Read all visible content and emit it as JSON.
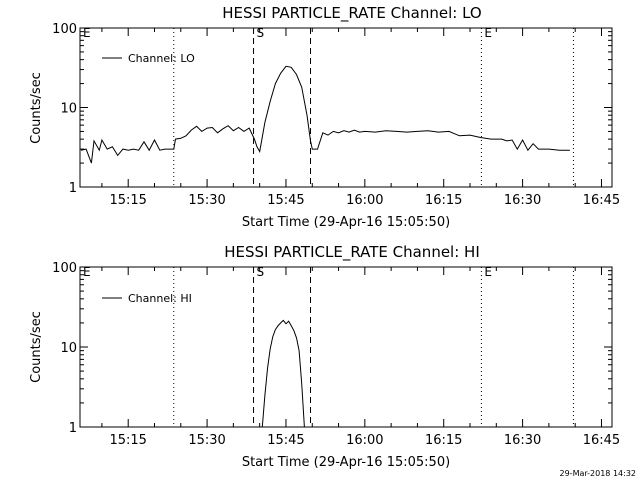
{
  "footer": {
    "timestamp": "29-Mar-2018 14:32"
  },
  "chart_data": [
    {
      "type": "line",
      "title": "HESSI PARTICLE_RATE Channel: LO",
      "xlabel": "Start Time (29-Apr-16 15:05:50)",
      "ylabel": "Counts/sec",
      "yscale": "log",
      "ylim": [
        1,
        100
      ],
      "xlim": [
        "15:05:50",
        "16:47:00"
      ],
      "y_tick_labels": [
        "1",
        "10",
        "100"
      ],
      "x_tick_labels": [
        "15:15",
        "15:30",
        "15:45",
        "16:00",
        "16:15",
        "16:30",
        "16:45"
      ],
      "x_ticks_min": [
        15.25,
        15.5,
        15.75,
        16.0,
        16.25,
        16.5,
        16.75
      ],
      "legend": {
        "position": "top-left",
        "label": "Channel: LO"
      },
      "markers": [
        {
          "label": "E",
          "time": "15:05:50",
          "style": "none"
        },
        {
          "label": "",
          "time": "15:23:40",
          "style": "dotted"
        },
        {
          "label": "S",
          "time": "15:38:50",
          "style": "dashed"
        },
        {
          "label": "",
          "time": "15:49:40",
          "style": "dashed"
        },
        {
          "label": "E",
          "time": "16:22:10",
          "style": "dotted"
        },
        {
          "label": "",
          "time": "16:39:40",
          "style": "dotted"
        }
      ],
      "series": [
        {
          "name": "Channel: LO",
          "x": [
            "15:06:00",
            "15:07:00",
            "15:08:00",
            "15:08:30",
            "15:09:30",
            "15:10:00",
            "15:11:00",
            "15:12:00",
            "15:13:00",
            "15:14:00",
            "15:15:00",
            "15:16:00",
            "15:17:00",
            "15:18:00",
            "15:19:00",
            "15:20:00",
            "15:21:00",
            "15:22:00",
            "15:23:40",
            "15:24:00",
            "15:25:00",
            "15:26:00",
            "15:27:00",
            "15:28:00",
            "15:29:00",
            "15:30:00",
            "15:31:00",
            "15:32:00",
            "15:33:00",
            "15:34:00",
            "15:35:00",
            "15:36:00",
            "15:37:00",
            "15:38:00",
            "15:39:00",
            "15:39:30",
            "15:40:00",
            "15:41:00",
            "15:42:00",
            "15:43:00",
            "15:44:00",
            "15:45:00",
            "15:46:00",
            "15:47:00",
            "15:48:00",
            "15:49:00",
            "15:49:40",
            "15:50:00",
            "15:51:00",
            "15:52:00",
            "15:53:00",
            "15:54:00",
            "15:55:00",
            "15:56:00",
            "15:57:00",
            "15:58:00",
            "15:59:00",
            "16:00:00",
            "16:02:00",
            "16:04:00",
            "16:06:00",
            "16:08:00",
            "16:10:00",
            "16:12:00",
            "16:14:00",
            "16:16:00",
            "16:18:00",
            "16:20:00",
            "16:22:00",
            "16:24:00",
            "16:26:00",
            "16:27:00",
            "16:28:00",
            "16:29:00",
            "16:30:00",
            "16:31:00",
            "16:32:00",
            "16:33:00",
            "16:35:00",
            "16:37:00",
            "16:39:00"
          ],
          "y": [
            2.9,
            3.0,
            2.0,
            3.8,
            2.9,
            3.9,
            3.0,
            3.2,
            2.5,
            3.0,
            2.9,
            3.0,
            2.9,
            3.7,
            2.9,
            3.9,
            2.9,
            3.0,
            3.0,
            4.0,
            4.1,
            4.4,
            5.2,
            5.8,
            5.0,
            5.5,
            5.6,
            4.8,
            5.4,
            5.9,
            5.1,
            5.6,
            5.0,
            5.5,
            4.0,
            3.2,
            2.8,
            6.5,
            12.0,
            20.0,
            27.0,
            33.0,
            32.0,
            26.0,
            18.0,
            8.0,
            3.8,
            3.0,
            3.0,
            4.8,
            4.5,
            5.0,
            4.8,
            5.1,
            4.9,
            5.2,
            4.9,
            5.0,
            4.9,
            5.1,
            5.0,
            4.9,
            5.0,
            5.1,
            4.9,
            5.0,
            4.4,
            4.5,
            4.2,
            4.0,
            4.0,
            3.8,
            3.9,
            3.0,
            3.9,
            2.9,
            3.5,
            3.0,
            3.0,
            2.9,
            2.9
          ]
        }
      ]
    },
    {
      "type": "line",
      "title": "HESSI PARTICLE_RATE Channel: HI",
      "xlabel": "Start Time (29-Apr-16 15:05:50)",
      "ylabel": "Counts/sec",
      "yscale": "log",
      "ylim": [
        1,
        100
      ],
      "xlim": [
        "15:05:50",
        "16:47:00"
      ],
      "y_tick_labels": [
        "1",
        "10",
        "100"
      ],
      "x_tick_labels": [
        "15:15",
        "15:30",
        "15:45",
        "16:00",
        "16:15",
        "16:30",
        "16:45"
      ],
      "x_ticks_min": [
        15.25,
        15.5,
        15.75,
        16.0,
        16.25,
        16.5,
        16.75
      ],
      "legend": {
        "position": "top-left",
        "label": "Channel: HI"
      },
      "markers": [
        {
          "label": "E",
          "time": "15:05:50",
          "style": "none"
        },
        {
          "label": "",
          "time": "15:23:40",
          "style": "dotted"
        },
        {
          "label": "S",
          "time": "15:38:50",
          "style": "dashed"
        },
        {
          "label": "",
          "time": "15:49:40",
          "style": "dashed"
        },
        {
          "label": "E",
          "time": "16:22:10",
          "style": "dotted"
        },
        {
          "label": "",
          "time": "16:39:40",
          "style": "dotted"
        }
      ],
      "series": [
        {
          "name": "Channel: HI",
          "x": [
            "15:40:30",
            "15:41:00",
            "15:41:30",
            "15:42:00",
            "15:42:30",
            "15:43:00",
            "15:43:30",
            "15:44:00",
            "15:44:30",
            "15:45:00",
            "15:45:30",
            "15:46:00",
            "15:46:30",
            "15:47:00",
            "15:47:30",
            "15:48:00",
            "15:48:30"
          ],
          "y": [
            1.0,
            2.5,
            5.5,
            9.5,
            13.5,
            16.5,
            18.5,
            20.0,
            21.5,
            19.5,
            21.0,
            18.5,
            16.0,
            13.0,
            9.0,
            3.5,
            1.0
          ]
        }
      ]
    }
  ]
}
